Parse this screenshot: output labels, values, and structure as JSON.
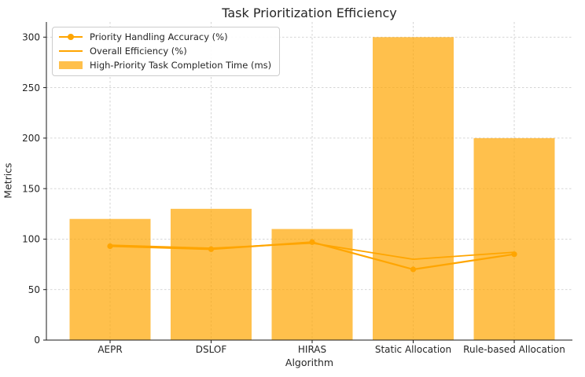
{
  "chart_data": {
    "type": "bar",
    "combo": "bar + two line series overlaid",
    "title": "Task Prioritization Efficiency",
    "xlabel": "Algorithm",
    "ylabel": "Metrics",
    "categories": [
      "AEPR",
      "DSLOF",
      "HIRAS",
      "Static Allocation",
      "Rule-based Allocation"
    ],
    "series": [
      {
        "name": "Priority Handling Accuracy (%)",
        "type": "line",
        "marker": "circle",
        "color": "#FFA500",
        "values": [
          93,
          90,
          97,
          70,
          85
        ]
      },
      {
        "name": "Overall Efficiency (%)",
        "type": "line",
        "marker": "none",
        "color": "#FFA500",
        "values": [
          94,
          91,
          96,
          80,
          87
        ]
      },
      {
        "name": "High-Priority Task Completion Time (ms)",
        "type": "bar",
        "color": "#FFA500",
        "opacity": 0.7,
        "values": [
          120,
          130,
          110,
          300,
          200
        ]
      }
    ],
    "yticks": [
      0,
      50,
      100,
      150,
      200,
      250,
      300
    ],
    "ylim": [
      0,
      315
    ],
    "grid": "both axes, dashed light gray",
    "legend_position": "upper-left",
    "grid_color": "#cfcfcf",
    "spine_color": "#1a1a1a",
    "text_color": "#262626"
  }
}
